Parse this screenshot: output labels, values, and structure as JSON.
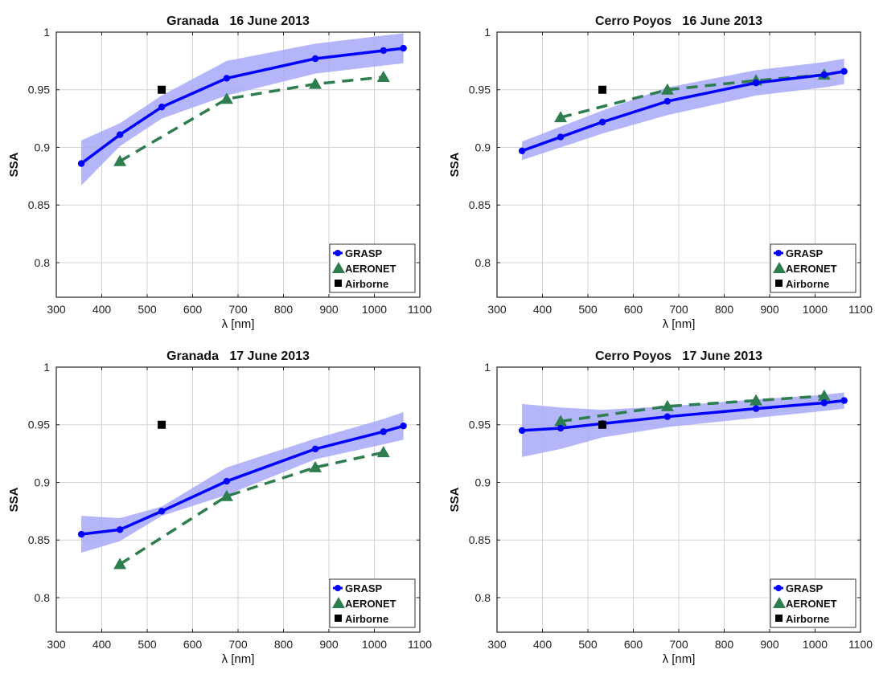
{
  "colors": {
    "grasp": "#0000ff",
    "grasp_band": "#a8a8f8",
    "aeronet": "#2e7d4f",
    "airborne": "#000000",
    "grid": "#d4d4d4",
    "axis": "#222222"
  },
  "chart_data": [
    {
      "type": "line",
      "title": "Granada   16 June 2013",
      "xlabel": "λ [nm]",
      "ylabel": "SSA",
      "xlim": [
        300,
        1100
      ],
      "ylim": [
        0.77,
        1
      ],
      "xticks": [
        "300",
        "400",
        "500",
        "600",
        "700",
        "800",
        "900",
        "1000",
        "1100"
      ],
      "yticks": [
        "0.8",
        "0.85",
        "0.9",
        "0.95",
        "1"
      ],
      "grid": true,
      "legend_position": "bottom-right",
      "series": [
        {
          "name": "GRASP",
          "x": [
            355,
            440,
            532,
            675,
            870,
            1020,
            1064
          ],
          "y": [
            0.886,
            0.911,
            0.935,
            0.96,
            0.977,
            0.984,
            0.986
          ],
          "band_upper": [
            0.906,
            0.921,
            0.945,
            0.975,
            0.99,
            0.997,
            0.999
          ],
          "band_lower": [
            0.867,
            0.901,
            0.925,
            0.945,
            0.964,
            0.971,
            0.973
          ]
        },
        {
          "name": "AERONET",
          "x": [
            440,
            675,
            870,
            1020
          ],
          "y": [
            0.888,
            0.942,
            0.955,
            0.961
          ]
        },
        {
          "name": "Airborne",
          "x": [
            532
          ],
          "y": [
            0.95
          ]
        }
      ]
    },
    {
      "type": "line",
      "title": "Cerro Poyos   16 June 2013",
      "xlabel": "λ [nm]",
      "ylabel": "SSA",
      "xlim": [
        300,
        1100
      ],
      "ylim": [
        0.77,
        1
      ],
      "xticks": [
        "300",
        "400",
        "500",
        "600",
        "700",
        "800",
        "900",
        "1000",
        "1100"
      ],
      "yticks": [
        "0.8",
        "0.85",
        "0.9",
        "0.95",
        "1"
      ],
      "grid": true,
      "legend_position": "bottom-right",
      "series": [
        {
          "name": "GRASP",
          "x": [
            355,
            440,
            532,
            675,
            870,
            1020,
            1064
          ],
          "y": [
            0.897,
            0.909,
            0.922,
            0.94,
            0.956,
            0.963,
            0.966
          ],
          "band_upper": [
            0.905,
            0.918,
            0.932,
            0.952,
            0.967,
            0.974,
            0.977
          ],
          "band_lower": [
            0.889,
            0.9,
            0.912,
            0.928,
            0.945,
            0.952,
            0.955
          ]
        },
        {
          "name": "AERONET",
          "x": [
            440,
            675,
            870,
            1020
          ],
          "y": [
            0.926,
            0.95,
            0.958,
            0.963
          ]
        },
        {
          "name": "Airborne",
          "x": [
            532
          ],
          "y": [
            0.95
          ]
        }
      ]
    },
    {
      "type": "line",
      "title": "Granada   17 June 2013",
      "xlabel": "λ [nm]",
      "ylabel": "SSA",
      "xlim": [
        300,
        1100
      ],
      "ylim": [
        0.77,
        1
      ],
      "xticks": [
        "300",
        "400",
        "500",
        "600",
        "700",
        "800",
        "900",
        "1000",
        "1100"
      ],
      "yticks": [
        "0.8",
        "0.85",
        "0.9",
        "0.95",
        "1"
      ],
      "grid": true,
      "legend_position": "bottom-right",
      "series": [
        {
          "name": "GRASP",
          "x": [
            355,
            440,
            532,
            675,
            870,
            1020,
            1064
          ],
          "y": [
            0.855,
            0.859,
            0.875,
            0.901,
            0.929,
            0.944,
            0.949
          ],
          "band_upper": [
            0.871,
            0.869,
            0.879,
            0.913,
            0.938,
            0.955,
            0.961
          ],
          "band_lower": [
            0.839,
            0.849,
            0.871,
            0.889,
            0.92,
            0.933,
            0.937
          ]
        },
        {
          "name": "AERONET",
          "x": [
            440,
            675,
            870,
            1020
          ],
          "y": [
            0.829,
            0.888,
            0.913,
            0.926
          ]
        },
        {
          "name": "Airborne",
          "x": [
            532
          ],
          "y": [
            0.95
          ]
        }
      ]
    },
    {
      "type": "line",
      "title": "Cerro Poyos   17 June 2013",
      "xlabel": "λ [nm]",
      "ylabel": "SSA",
      "xlim": [
        300,
        1100
      ],
      "ylim": [
        0.77,
        1
      ],
      "xticks": [
        "300",
        "400",
        "500",
        "600",
        "700",
        "800",
        "900",
        "1000",
        "1100"
      ],
      "yticks": [
        "0.8",
        "0.85",
        "0.9",
        "0.95",
        "1"
      ],
      "grid": true,
      "legend_position": "bottom-right",
      "series": [
        {
          "name": "GRASP",
          "x": [
            355,
            440,
            532,
            675,
            870,
            1020,
            1064
          ],
          "y": [
            0.945,
            0.947,
            0.951,
            0.957,
            0.964,
            0.969,
            0.971
          ],
          "band_upper": [
            0.968,
            0.965,
            0.963,
            0.966,
            0.972,
            0.976,
            0.978
          ],
          "band_lower": [
            0.922,
            0.929,
            0.939,
            0.948,
            0.956,
            0.962,
            0.964
          ]
        },
        {
          "name": "AERONET",
          "x": [
            440,
            675,
            870,
            1020
          ],
          "y": [
            0.953,
            0.966,
            0.971,
            0.975
          ]
        },
        {
          "name": "Airborne",
          "x": [
            532
          ],
          "y": [
            0.95
          ]
        }
      ]
    }
  ]
}
